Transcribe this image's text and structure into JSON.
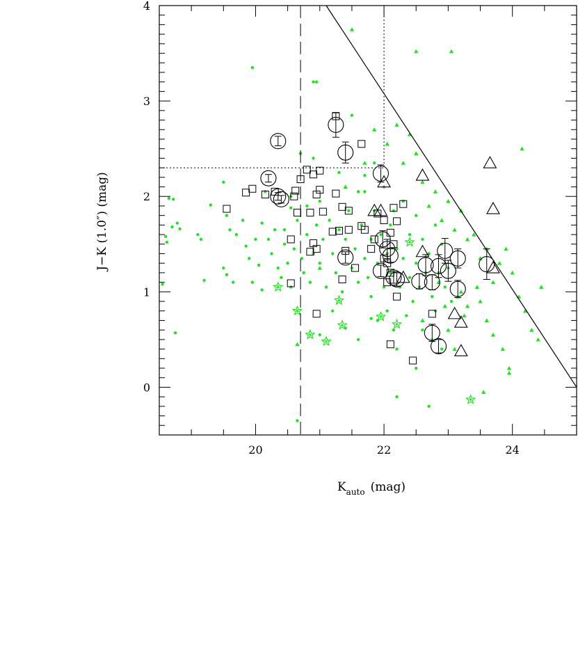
{
  "chart_data": {
    "type": "scatter",
    "title": "",
    "xlabel": "K",
    "xlabel_sub": "auto",
    "xlabel_unit": "(mag)",
    "ylabel": "J−K (1.0″) (mag)",
    "xlim": [
      18.5,
      25.0
    ],
    "ylim": [
      -0.5,
      4.0
    ],
    "x_ticks": [
      20,
      22,
      24
    ],
    "y_ticks": [
      0,
      1,
      2,
      3,
      4
    ],
    "grid": false,
    "legend": "none",
    "colors": {
      "green": "#22e022",
      "black": "#000000"
    },
    "reference_lines": {
      "dashed_vertical_x": 20.7,
      "dotted_vertical": {
        "x": 22.0,
        "y_from": 2.3,
        "y_to": 4.0
      },
      "dotted_horizontal": {
        "y": 2.3,
        "x_from": 18.5,
        "x_to": 22.0
      },
      "solid_diagonal": [
        [
          21.1,
          4.0
        ],
        [
          25.0,
          0.0
        ]
      ]
    },
    "series": [
      {
        "marker": "green-dot",
        "points": [
          [
            18.55,
            1.08
          ],
          [
            18.6,
            1.58
          ],
          [
            18.62,
            1.52
          ],
          [
            18.65,
            1.98
          ],
          [
            18.72,
            1.97
          ],
          [
            18.7,
            1.68
          ],
          [
            18.78,
            1.72
          ],
          [
            18.82,
            1.66
          ],
          [
            18.75,
            0.57
          ],
          [
            19.1,
            1.6
          ],
          [
            19.15,
            1.55
          ],
          [
            19.2,
            1.12
          ],
          [
            19.3,
            1.91
          ],
          [
            19.5,
            2.15
          ],
          [
            19.55,
            1.8
          ],
          [
            19.6,
            1.65
          ],
          [
            19.5,
            1.25
          ],
          [
            19.55,
            1.18
          ],
          [
            19.65,
            1.1
          ],
          [
            19.7,
            1.6
          ],
          [
            19.8,
            1.75
          ],
          [
            19.85,
            1.48
          ],
          [
            19.9,
            1.35
          ],
          [
            19.95,
            3.35
          ],
          [
            19.95,
            1.1
          ],
          [
            20.0,
            1.55
          ],
          [
            20.05,
            1.28
          ],
          [
            20.1,
            1.72
          ],
          [
            20.1,
            1.02
          ],
          [
            20.15,
            2.05
          ],
          [
            20.2,
            1.55
          ],
          [
            20.25,
            1.4
          ],
          [
            20.3,
            1.65
          ],
          [
            20.35,
            1.25
          ],
          [
            20.4,
            1.15
          ],
          [
            20.45,
            1.5
          ],
          [
            20.45,
            1.65
          ],
          [
            20.5,
            1.3
          ],
          [
            20.55,
            1.88
          ],
          [
            20.55,
            1.05
          ],
          [
            20.6,
            1.45
          ],
          [
            20.65,
            1.75
          ],
          [
            20.7,
            2.45
          ],
          [
            20.72,
            1.35
          ],
          [
            20.75,
            1.2
          ],
          [
            20.8,
            1.9
          ],
          [
            20.8,
            1.6
          ],
          [
            20.85,
            1.1
          ],
          [
            20.9,
            3.2
          ],
          [
            20.95,
            3.2
          ],
          [
            20.9,
            1.4
          ],
          [
            20.95,
            1.7
          ],
          [
            21.0,
            1.3
          ],
          [
            21.0,
            1.95
          ],
          [
            21.05,
            1.55
          ],
          [
            21.1,
            1.05
          ],
          [
            21.15,
            1.75
          ],
          [
            21.2,
            1.4
          ],
          [
            21.25,
            1.2
          ],
          [
            21.3,
            1.65
          ],
          [
            21.35,
            1.0
          ],
          [
            21.4,
            1.55
          ],
          [
            21.45,
            1.85
          ],
          [
            21.5,
            1.25
          ],
          [
            21.5,
            2.85
          ],
          [
            21.55,
            1.45
          ],
          [
            21.6,
            1.1
          ],
          [
            21.6,
            2.05
          ],
          [
            21.65,
            1.7
          ],
          [
            21.7,
            1.35
          ],
          [
            21.7,
            2.05
          ],
          [
            21.75,
            1.15
          ],
          [
            21.8,
            1.55
          ],
          [
            21.8,
            0.95
          ],
          [
            21.85,
            1.85
          ],
          [
            21.9,
            1.3
          ],
          [
            21.9,
            0.7
          ],
          [
            21.95,
            1.6
          ],
          [
            22.0,
            1.05
          ],
          [
            22.05,
            1.4
          ],
          [
            22.05,
            0.8
          ],
          [
            22.1,
            1.7
          ],
          [
            22.1,
            1.2
          ],
          [
            22.15,
            1.85
          ],
          [
            22.15,
            0.6
          ],
          [
            22.2,
            -0.1
          ],
          [
            22.2,
            1.45
          ],
          [
            22.25,
            1.05
          ],
          [
            22.3,
            1.35
          ],
          [
            22.3,
            1.95
          ],
          [
            22.35,
            0.75
          ],
          [
            22.4,
            1.6
          ],
          [
            22.4,
            1.15
          ],
          [
            22.45,
            0.9
          ],
          [
            22.5,
            1.8
          ],
          [
            22.5,
            1.3
          ],
          [
            22.55,
            1.05
          ],
          [
            22.6,
            1.55
          ],
          [
            22.6,
            0.6
          ],
          [
            22.65,
            1.2
          ],
          [
            22.7,
            -0.2
          ],
          [
            22.7,
            1.4
          ],
          [
            22.75,
            0.95
          ],
          [
            22.8,
            1.7
          ],
          [
            22.8,
            0.8
          ],
          [
            22.85,
            1.2
          ],
          [
            22.9,
            1.5
          ],
          [
            22.9,
            0.4
          ],
          [
            22.95,
            1.05
          ],
          [
            23.0,
            1.25
          ],
          [
            23.05,
            0.9
          ],
          [
            20.65,
            -0.35
          ],
          [
            21.0,
            0.55
          ],
          [
            21.2,
            0.8
          ],
          [
            21.4,
            0.62
          ],
          [
            21.6,
            0.5
          ],
          [
            21.8,
            0.72
          ],
          [
            22.2,
            0.4
          ],
          [
            22.5,
            0.2
          ],
          [
            20.9,
            2.4
          ],
          [
            21.7,
            2.22
          ],
          [
            22.0,
            2.1
          ],
          [
            21.85,
            2.35
          ],
          [
            21.3,
            2.25
          ],
          [
            20.55,
            2.0
          ]
        ]
      },
      {
        "marker": "green-triangle",
        "points": [
          [
            21.5,
            3.75
          ],
          [
            22.5,
            3.52
          ],
          [
            23.05,
            3.52
          ],
          [
            22.2,
            2.75
          ],
          [
            22.3,
            2.35
          ],
          [
            22.4,
            2.65
          ],
          [
            22.5,
            2.45
          ],
          [
            22.6,
            2.15
          ],
          [
            22.7,
            1.9
          ],
          [
            22.8,
            2.05
          ],
          [
            22.9,
            1.75
          ],
          [
            23.0,
            1.95
          ],
          [
            23.1,
            1.65
          ],
          [
            23.2,
            1.85
          ],
          [
            23.3,
            1.55
          ],
          [
            23.4,
            1.6
          ],
          [
            23.5,
            1.35
          ],
          [
            23.6,
            1.45
          ],
          [
            23.7,
            1.1
          ],
          [
            23.8,
            1.3
          ],
          [
            23.9,
            1.45
          ],
          [
            24.0,
            1.2
          ],
          [
            24.1,
            0.95
          ],
          [
            24.15,
            2.5
          ],
          [
            24.2,
            0.8
          ],
          [
            24.3,
            0.6
          ],
          [
            24.4,
            0.5
          ],
          [
            23.5,
            0.9
          ],
          [
            23.6,
            0.7
          ],
          [
            23.7,
            0.55
          ],
          [
            23.85,
            0.4
          ],
          [
            23.95,
            0.2
          ],
          [
            23.95,
            0.15
          ],
          [
            23.2,
            1.0
          ],
          [
            23.25,
            0.75
          ],
          [
            23.15,
            0.95
          ],
          [
            23.3,
            0.85
          ],
          [
            23.45,
            1.05
          ],
          [
            23.55,
            -0.05
          ],
          [
            24.45,
            1.05
          ],
          [
            23.1,
            0.4
          ],
          [
            23.0,
            0.6
          ],
          [
            22.95,
            0.85
          ],
          [
            22.85,
            1.1
          ],
          [
            22.75,
            0.5
          ],
          [
            22.6,
            0.7
          ],
          [
            21.85,
            2.7
          ],
          [
            21.4,
            2.1
          ],
          [
            22.05,
            2.55
          ],
          [
            21.7,
            2.35
          ],
          [
            20.65,
            0.45
          ],
          [
            21.0,
            1.25
          ]
        ]
      },
      {
        "marker": "green-star",
        "points": [
          [
            20.35,
            1.05
          ],
          [
            20.65,
            0.8
          ],
          [
            20.85,
            0.55
          ],
          [
            21.1,
            0.48
          ],
          [
            21.3,
            0.91
          ],
          [
            21.35,
            0.65
          ],
          [
            21.95,
            0.74
          ],
          [
            22.2,
            0.66
          ],
          [
            22.4,
            1.52
          ],
          [
            23.35,
            -0.13
          ]
        ]
      },
      {
        "marker": "black-square",
        "points": [
          [
            19.55,
            1.87
          ],
          [
            19.85,
            2.04
          ],
          [
            19.95,
            2.08
          ],
          [
            20.15,
            2.02
          ],
          [
            20.3,
            2.05
          ],
          [
            20.55,
            1.09
          ],
          [
            20.55,
            1.55
          ],
          [
            20.6,
            2.0
          ],
          [
            20.62,
            2.06
          ],
          [
            20.65,
            1.83
          ],
          [
            20.7,
            2.18
          ],
          [
            20.8,
            2.28
          ],
          [
            20.85,
            1.83
          ],
          [
            20.85,
            1.42
          ],
          [
            20.9,
            2.23
          ],
          [
            20.9,
            1.51
          ],
          [
            20.95,
            1.45
          ],
          [
            20.95,
            2.02
          ],
          [
            21.0,
            2.27
          ],
          [
            21.0,
            2.07
          ],
          [
            21.05,
            1.84
          ],
          [
            20.95,
            0.77
          ],
          [
            21.2,
            1.63
          ],
          [
            21.25,
            2.84
          ],
          [
            21.25,
            2.03
          ],
          [
            21.3,
            1.64
          ],
          [
            21.35,
            1.89
          ],
          [
            21.35,
            1.13
          ],
          [
            21.4,
            1.43
          ],
          [
            21.45,
            1.85
          ],
          [
            21.45,
            1.65
          ],
          [
            21.55,
            1.25
          ],
          [
            21.65,
            2.55
          ],
          [
            21.65,
            1.69
          ],
          [
            21.7,
            1.65
          ],
          [
            21.8,
            1.45
          ],
          [
            21.85,
            1.55
          ],
          [
            21.9,
            1.82
          ],
          [
            22.0,
            1.75
          ],
          [
            22.0,
            1.35
          ],
          [
            22.05,
            1.3
          ],
          [
            22.05,
            1.1
          ],
          [
            22.1,
            1.2
          ],
          [
            22.1,
            1.62
          ],
          [
            22.15,
            1.5
          ],
          [
            22.15,
            1.88
          ],
          [
            22.2,
            1.74
          ],
          [
            22.2,
            0.95
          ],
          [
            22.3,
            1.92
          ],
          [
            22.45,
            0.28
          ],
          [
            22.75,
            0.77
          ],
          [
            22.1,
            0.45
          ]
        ]
      },
      {
        "marker": "black-triangle",
        "points": [
          [
            21.85,
            1.85
          ],
          [
            22.0,
            2.15
          ],
          [
            22.3,
            1.15
          ],
          [
            22.6,
            2.22
          ],
          [
            22.6,
            1.42
          ],
          [
            23.1,
            0.77
          ],
          [
            23.2,
            0.68
          ],
          [
            23.2,
            0.38
          ],
          [
            23.65,
            2.35
          ],
          [
            23.7,
            1.87
          ],
          [
            23.7,
            1.25
          ],
          [
            21.95,
            1.85
          ]
        ]
      },
      {
        "marker": "black-circle-errorbar",
        "points": [
          [
            20.2,
            2.19,
            0.04
          ],
          [
            20.35,
            2.0,
            0.04
          ],
          [
            20.35,
            2.58,
            0.05
          ],
          [
            20.4,
            1.97,
            0.04
          ],
          [
            21.25,
            2.75,
            0.13
          ],
          [
            21.4,
            2.46,
            0.11
          ],
          [
            21.4,
            1.36,
            0.06
          ],
          [
            21.95,
            2.24,
            0.09
          ],
          [
            21.95,
            1.22,
            0.06
          ],
          [
            21.98,
            1.55,
            0.09
          ],
          [
            22.05,
            1.45,
            0.1
          ],
          [
            22.1,
            1.38,
            0.07
          ],
          [
            22.15,
            1.15,
            0.06
          ],
          [
            22.2,
            1.13,
            0.07
          ],
          [
            22.55,
            1.11,
            0.08
          ],
          [
            22.65,
            1.28,
            0.11
          ],
          [
            22.75,
            1.1,
            0.08
          ],
          [
            22.75,
            0.57,
            0.09
          ],
          [
            22.85,
            1.27,
            0.12
          ],
          [
            22.85,
            0.43,
            0.07
          ],
          [
            22.95,
            1.43,
            0.13
          ],
          [
            23.0,
            1.22,
            0.11
          ],
          [
            23.15,
            1.35,
            0.1
          ],
          [
            23.15,
            1.03,
            0.09
          ],
          [
            23.6,
            1.29,
            0.16
          ]
        ]
      }
    ]
  }
}
